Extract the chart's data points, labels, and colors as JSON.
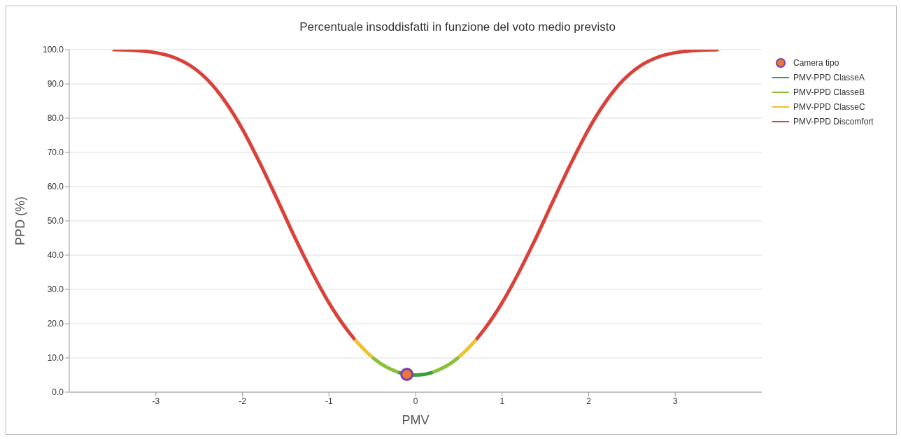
{
  "chart_data": {
    "type": "line",
    "title": "Percentuale insoddisfatti in funzione del voto medio previsto",
    "xlabel": "PMV",
    "ylabel": "PPD (%)",
    "xlim": [
      -4,
      4
    ],
    "xticks": [
      -3,
      -2,
      -1,
      0,
      1,
      2,
      3
    ],
    "ylim": [
      0,
      100
    ],
    "yticks": [
      {
        "value": 0,
        "label": "0.0"
      },
      {
        "value": 10,
        "label": "10.0"
      },
      {
        "value": 20,
        "label": "20.0"
      },
      {
        "value": 30,
        "label": "30.0"
      },
      {
        "value": 40,
        "label": "40.0"
      },
      {
        "value": 50,
        "label": "50.0"
      },
      {
        "value": 60,
        "label": "60.0"
      },
      {
        "value": 70,
        "label": "70.0"
      },
      {
        "value": 80,
        "label": "80.0"
      },
      {
        "value": 90,
        "label": "90.0"
      },
      {
        "value": 100,
        "label": "100.0"
      }
    ],
    "grid": "y",
    "legend": "top right",
    "line_style": "solid",
    "series": [
      {
        "name": "Camera tipo",
        "type": "scatter",
        "marker": "circle",
        "color": "#e8773a",
        "x": [
          -0.1
        ],
        "values": [
          5.2
        ]
      },
      {
        "name": "PMV-PPD ClasseA",
        "color": "#3a9e3e",
        "x": [
          -0.2,
          -0.1,
          0,
          0.1,
          0.2
        ],
        "values": [
          5.8,
          5.2,
          5.0,
          5.2,
          5.8
        ]
      },
      {
        "name": "PMV-PPD ClasseB",
        "color": "#8cc03a",
        "x": [
          -0.5,
          -0.4,
          -0.3,
          -0.2,
          0,
          0.2,
          0.3,
          0.4,
          0.5
        ],
        "values": [
          10.2,
          8.3,
          6.9,
          5.8,
          null,
          5.8,
          6.9,
          8.3,
          10.2
        ]
      },
      {
        "name": "PMV-PPD ClasseC",
        "color": "#f2c12e",
        "x": [
          -0.7,
          -0.6,
          -0.5,
          0,
          0.5,
          0.6,
          0.7
        ],
        "values": [
          15.3,
          12.6,
          10.2,
          null,
          10.2,
          12.6,
          15.3
        ]
      },
      {
        "name": "PMV-PPD Discomfort",
        "color": "#d9413a",
        "x": [
          -3.5,
          -3.2,
          -3.0,
          -2.8,
          -2.6,
          -2.4,
          -2.2,
          -2.0,
          -1.8,
          -1.6,
          -1.4,
          -1.2,
          -1.0,
          -0.8,
          -0.7,
          0,
          0.7,
          0.8,
          1.0,
          1.2,
          1.4,
          1.6,
          1.8,
          2.0,
          2.2,
          2.4,
          2.6,
          2.8,
          3.0,
          3.2,
          3.5
        ],
        "values": [
          100.0,
          99.7,
          99.1,
          97.8,
          95.3,
          91.1,
          84.9,
          76.8,
          67.0,
          56.4,
          45.5,
          35.3,
          26.1,
          18.5,
          15.3,
          null,
          15.3,
          18.5,
          26.1,
          35.3,
          45.5,
          56.4,
          67.0,
          76.8,
          84.9,
          91.1,
          95.3,
          97.8,
          99.1,
          99.7,
          100.0
        ]
      }
    ]
  }
}
